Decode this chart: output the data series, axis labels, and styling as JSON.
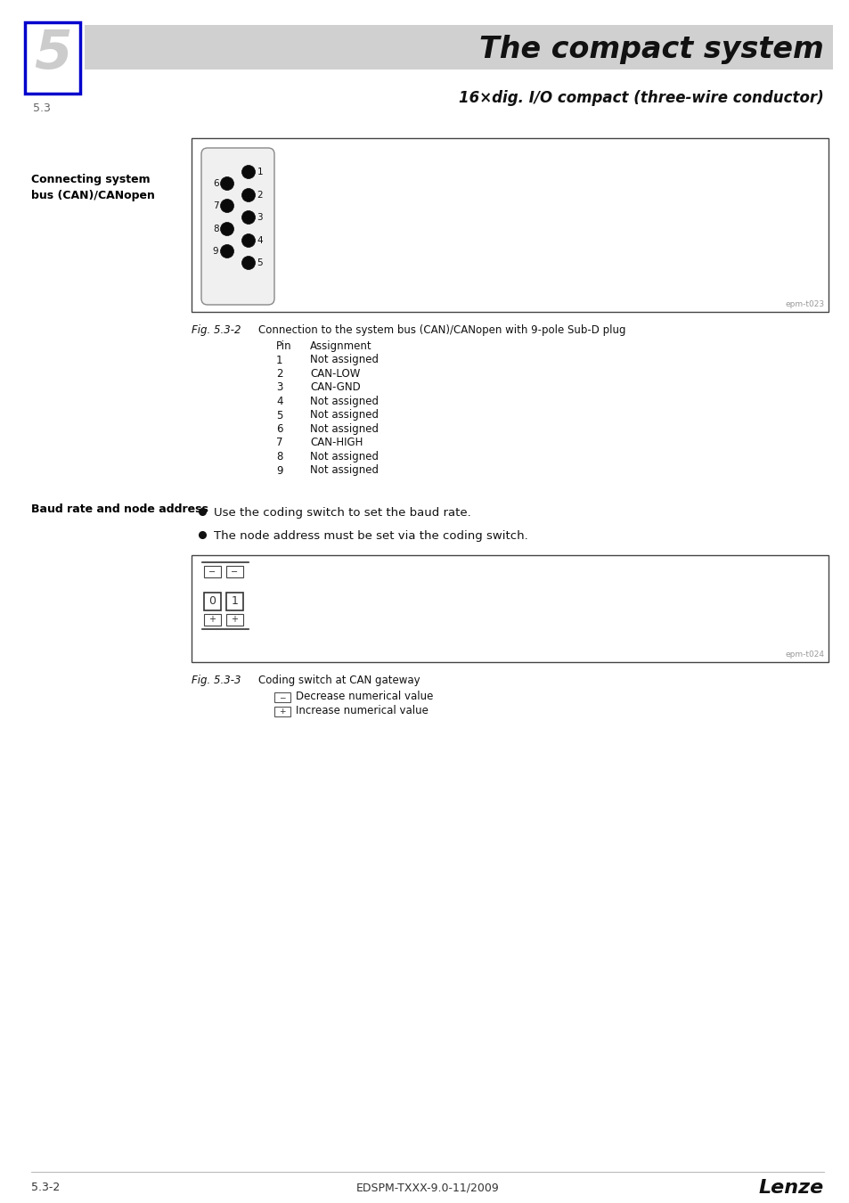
{
  "page_bg": "#ffffff",
  "header_bg": "#d0d0d0",
  "header_title": "The compact system",
  "header_subtitle": "16×dig. I/O compact (three-wire conductor)",
  "chapter_num": "5",
  "section_num": "5.3",
  "left_label1": "Connecting system\nbus (CAN)/CANopen",
  "fig1_label": "Fig. 5.3-2",
  "fig1_caption": "Connection to the system bus (CAN)/CANopen with 9-pole Sub-D plug",
  "fig1_watermark": "epm-t023",
  "pin_header": [
    "Pin",
    "Assignment"
  ],
  "pin_data": [
    [
      "1",
      "Not assigned"
    ],
    [
      "2",
      "CAN-LOW"
    ],
    [
      "3",
      "CAN-GND"
    ],
    [
      "4",
      "Not assigned"
    ],
    [
      "5",
      "Not assigned"
    ],
    [
      "6",
      "Not assigned"
    ],
    [
      "7",
      "CAN-HIGH"
    ],
    [
      "8",
      "Not assigned"
    ],
    [
      "9",
      "Not assigned"
    ]
  ],
  "left_label2": "Baud rate and node address",
  "bullet1": "Use the coding switch to set the baud rate.",
  "bullet2": "The node address must be set via the coding switch.",
  "fig2_label": "Fig. 5.3-3",
  "fig2_caption": "Coding switch at CAN gateway",
  "fig2_watermark": "epm-t024",
  "symbol_minus": "−",
  "symbol_plus": "+",
  "desc_minus": "Decrease numerical value",
  "desc_plus": "Increase numerical value",
  "footer_left": "5.3-2",
  "footer_center": "EDSPM-TXXX-9.0-11/2009",
  "footer_right": "Lenze"
}
